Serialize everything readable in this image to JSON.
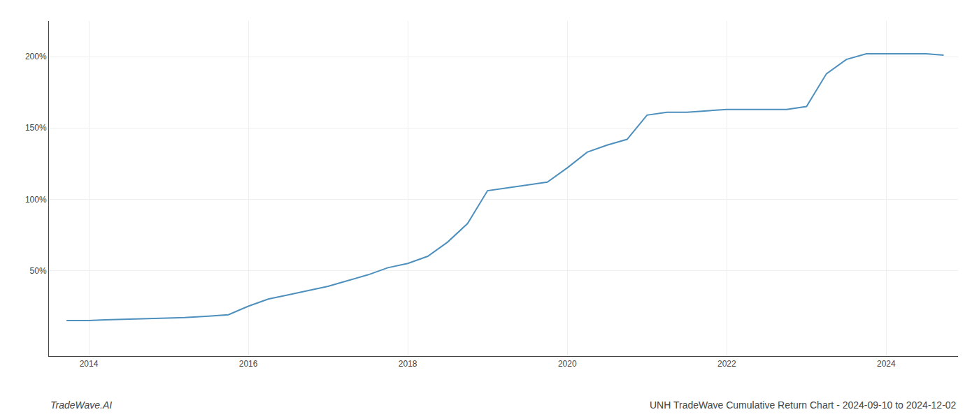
{
  "chart_data": {
    "type": "line",
    "title": "UNH TradeWave Cumulative Return Chart - 2024-09-10 to 2024-12-02",
    "annotations": [
      "TradeWave.AI"
    ],
    "x": [
      2013.72,
      2014.0,
      2014.2,
      2014.5,
      2014.75,
      2015.0,
      2015.2,
      2015.5,
      2015.75,
      2016.0,
      2016.25,
      2016.5,
      2016.75,
      2017.0,
      2017.25,
      2017.5,
      2017.75,
      2018.0,
      2018.25,
      2018.5,
      2018.75,
      2019.0,
      2019.25,
      2019.5,
      2019.75,
      2020.0,
      2020.25,
      2020.5,
      2020.75,
      2021.0,
      2021.25,
      2021.5,
      2021.75,
      2022.0,
      2022.25,
      2022.5,
      2022.75,
      2023.0,
      2023.25,
      2023.5,
      2023.75,
      2024.0,
      2024.25,
      2024.5,
      2024.72
    ],
    "values": [
      15,
      15,
      15.5,
      16,
      16.5,
      17,
      17,
      18,
      19,
      25,
      30,
      33,
      36,
      39,
      43,
      47,
      52,
      55,
      60,
      70,
      83,
      106,
      108,
      110,
      112,
      122,
      133,
      138,
      142,
      159,
      161,
      161,
      162,
      163,
      163,
      163,
      163,
      165,
      188,
      198,
      202,
      202,
      202,
      202,
      201
    ],
    "color": "#4d8fbd",
    "xlim": [
      2013.5,
      2024.9
    ],
    "ylim": [
      -10,
      225
    ],
    "xticks": [
      2014,
      2016,
      2018,
      2020,
      2022,
      2024
    ],
    "yticks": [
      {
        "value": 50,
        "label": "50%"
      },
      {
        "value": 100,
        "label": "100%"
      },
      {
        "value": 150,
        "label": "150%"
      },
      {
        "value": 200,
        "label": "200%"
      }
    ],
    "grid": true
  }
}
